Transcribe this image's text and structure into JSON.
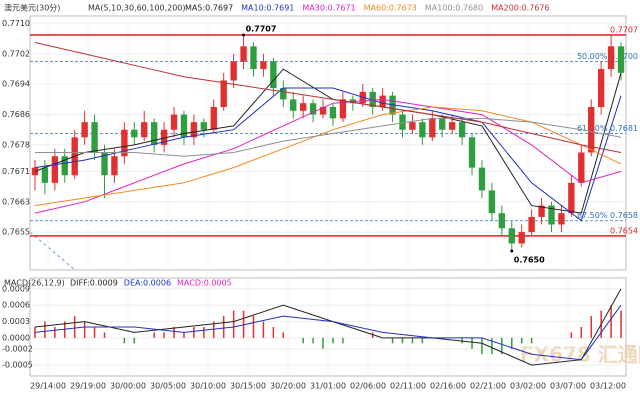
{
  "chart_data": {
    "type": "candlestick",
    "title": "澳元美元(30分)",
    "ma_title": "MA(5,10,30,60,100,200)",
    "candles": [
      [
        0.767,
        0.7674,
        0.7666,
        0.7672
      ],
      [
        0.7672,
        0.7674,
        0.7665,
        0.7668
      ],
      [
        0.7668,
        0.7677,
        0.7666,
        0.7675
      ],
      [
        0.7675,
        0.7677,
        0.7668,
        0.767
      ],
      [
        0.767,
        0.7682,
        0.7669,
        0.768
      ],
      [
        0.768,
        0.7687,
        0.7678,
        0.7684
      ],
      [
        0.7684,
        0.7686,
        0.7674,
        0.7676
      ],
      [
        0.7676,
        0.7678,
        0.7664,
        0.767
      ],
      [
        0.767,
        0.7677,
        0.7668,
        0.7675
      ],
      [
        0.7675,
        0.7684,
        0.7673,
        0.7682
      ],
      [
        0.7682,
        0.7684,
        0.7678,
        0.768
      ],
      [
        0.768,
        0.7687,
        0.7679,
        0.7684
      ],
      [
        0.7684,
        0.7685,
        0.7676,
        0.7678
      ],
      [
        0.7678,
        0.7684,
        0.7676,
        0.7682
      ],
      [
        0.7682,
        0.7688,
        0.768,
        0.7686
      ],
      [
        0.7686,
        0.7687,
        0.7678,
        0.768
      ],
      [
        0.768,
        0.7686,
        0.7678,
        0.7684
      ],
      [
        0.7684,
        0.7685,
        0.768,
        0.7682
      ],
      [
        0.7682,
        0.769,
        0.7681,
        0.7688
      ],
      [
        0.7688,
        0.7697,
        0.7687,
        0.7695
      ],
      [
        0.7695,
        0.7702,
        0.7693,
        0.77
      ],
      [
        0.77,
        0.7707,
        0.7698,
        0.7704
      ],
      [
        0.7704,
        0.7705,
        0.7696,
        0.7698
      ],
      [
        0.7698,
        0.7702,
        0.7696,
        0.77
      ],
      [
        0.77,
        0.7701,
        0.7691,
        0.7693
      ],
      [
        0.7693,
        0.7695,
        0.7688,
        0.769
      ],
      [
        0.769,
        0.7692,
        0.7685,
        0.7687
      ],
      [
        0.7687,
        0.7691,
        0.7685,
        0.7689
      ],
      [
        0.7689,
        0.769,
        0.7684,
        0.7686
      ],
      [
        0.7686,
        0.769,
        0.7685,
        0.7688
      ],
      [
        0.7688,
        0.7689,
        0.7683,
        0.7685
      ],
      [
        0.7685,
        0.7692,
        0.7684,
        0.769
      ],
      [
        0.769,
        0.7691,
        0.7687,
        0.7689
      ],
      [
        0.7689,
        0.7694,
        0.7688,
        0.7692
      ],
      [
        0.7692,
        0.7693,
        0.7686,
        0.7688
      ],
      [
        0.7688,
        0.7693,
        0.7687,
        0.7691
      ],
      [
        0.7691,
        0.7692,
        0.7684,
        0.7686
      ],
      [
        0.7686,
        0.7687,
        0.768,
        0.7682
      ],
      [
        0.7682,
        0.7686,
        0.7681,
        0.7684
      ],
      [
        0.7684,
        0.7685,
        0.7678,
        0.768
      ],
      [
        0.768,
        0.7687,
        0.7679,
        0.7685
      ],
      [
        0.7685,
        0.7686,
        0.768,
        0.7682
      ],
      [
        0.7682,
        0.7686,
        0.7681,
        0.7684
      ],
      [
        0.7684,
        0.7685,
        0.7678,
        0.768
      ],
      [
        0.768,
        0.7681,
        0.767,
        0.7672
      ],
      [
        0.7672,
        0.7674,
        0.7664,
        0.7666
      ],
      [
        0.7666,
        0.7668,
        0.7658,
        0.766
      ],
      [
        0.766,
        0.7662,
        0.7654,
        0.7656
      ],
      [
        0.7656,
        0.7658,
        0.765,
        0.7652
      ],
      [
        0.7652,
        0.7657,
        0.7651,
        0.7655
      ],
      [
        0.7655,
        0.7661,
        0.7654,
        0.7659
      ],
      [
        0.7659,
        0.7664,
        0.7657,
        0.7662
      ],
      [
        0.7662,
        0.7663,
        0.7655,
        0.7657
      ],
      [
        0.7657,
        0.7662,
        0.7655,
        0.766
      ],
      [
        0.766,
        0.767,
        0.7659,
        0.7668
      ],
      [
        0.7668,
        0.7678,
        0.7667,
        0.7676
      ],
      [
        0.7676,
        0.769,
        0.7675,
        0.7688
      ],
      [
        0.7688,
        0.77,
        0.7686,
        0.7698
      ],
      [
        0.7698,
        0.7707,
        0.7696,
        0.7704
      ],
      [
        0.7704,
        0.7705,
        0.7695,
        0.7697
      ]
    ],
    "up_color": "#e03030",
    "down_color": "#2e9e3e",
    "x": [
      0,
      5,
      10,
      15,
      20,
      25,
      30,
      35,
      40,
      45,
      50,
      55,
      59
    ],
    "series": [
      {
        "name": "MA5:0.7697",
        "color": "#222222",
        "values": [
          0.7671,
          0.7676,
          0.7678,
          0.7681,
          0.7683,
          0.7698,
          0.769,
          0.7688,
          0.7686,
          0.7683,
          0.7662,
          0.766,
          0.7697
        ]
      },
      {
        "name": "MA10:0.7691",
        "color": "#2030c0",
        "values": [
          0.7672,
          0.7674,
          0.7677,
          0.768,
          0.7682,
          0.7693,
          0.7693,
          0.7689,
          0.7687,
          0.7684,
          0.7668,
          0.7658,
          0.7691
        ]
      },
      {
        "name": "MA30:0.7671",
        "color": "#e020c0",
        "values": [
          0.766,
          0.7663,
          0.7668,
          0.7673,
          0.7677,
          0.7683,
          0.7689,
          0.769,
          0.7688,
          0.7686,
          0.7678,
          0.7668,
          0.7671
        ]
      },
      {
        "name": "MA60:0.7673",
        "color": "#f08a20",
        "values": [
          0.7662,
          0.7664,
          0.7666,
          0.7668,
          0.7672,
          0.7677,
          0.7682,
          0.7686,
          0.7688,
          0.7687,
          0.7684,
          0.7678,
          0.7673
        ]
      },
      {
        "name": "MA100:0.7680",
        "color": "#909090",
        "values": [
          0.7676,
          0.7676,
          0.7676,
          0.7675,
          0.7676,
          0.7679,
          0.7681,
          0.7683,
          0.7685,
          0.7685,
          0.7684,
          0.7682,
          0.768
        ]
      },
      {
        "name": "MA200:0.7676",
        "color": "#c03030",
        "values": [
          0.7705,
          0.7702,
          0.7699,
          0.7696,
          0.7694,
          0.7692,
          0.769,
          0.7688,
          0.7686,
          0.7684,
          0.7681,
          0.7678,
          0.7676
        ]
      }
    ],
    "ylim": [
      0.7645,
      0.7712
    ],
    "yticks": [
      {
        "value": 0.771,
        "label": "0.7710"
      },
      0.7702,
      0.7694,
      0.7686,
      0.7678,
      0.7671,
      0.7663,
      0.7655
    ],
    "levels": [
      {
        "value": 0.7707,
        "label": "0.7707",
        "color": "#e02020",
        "dashed": false
      },
      {
        "value": 0.77,
        "label": "50.00% 0.7700",
        "color": "#3070c0",
        "dashed": true
      },
      {
        "value": 0.7681,
        "label": "61.80% 0.7681",
        "color": "#3070c0",
        "dashed": true
      },
      {
        "value": 0.7658,
        "label": "87.50% 0.7658",
        "color": "#3070c0",
        "dashed": true
      },
      {
        "value": 0.7654,
        "label": "0.7654",
        "color": "#e02020",
        "dashed": false
      }
    ],
    "annotations": [
      {
        "text": "0.7707",
        "value": 0.7707,
        "index": 21
      },
      {
        "text": "0.7650",
        "value": 0.765,
        "index": 48
      }
    ],
    "categories": [
      "29/14:00",
      "29/19:00",
      "30/00:00",
      "30/05:00",
      "30/10:00",
      "30/15:00",
      "30/20:00",
      "31/01:00",
      "02/06:00",
      "02/11:00",
      "02/16:00",
      "02/21:00",
      "03/02:00",
      "03/07:00",
      "03/12:00"
    ],
    "macd": {
      "title": "MACD(26,12,9)",
      "hist": {
        "name": "MACD:0.0005",
        "values": [
          0.0002,
          0.0003,
          0.0002,
          0.0003,
          0.0004,
          0.0003,
          0.0002,
          0.0001,
          0,
          -0.0001,
          -0.0001,
          0,
          0.0001,
          0.0001,
          0.0002,
          0.0001,
          0.0002,
          0.0002,
          0.0003,
          0.0004,
          0.0005,
          0.0005,
          0.0004,
          0.0003,
          0.0002,
          0.0001,
          0,
          -0.0001,
          -0.0001,
          -0.0002,
          -0.0001,
          -0.0001,
          0,
          0,
          0.0001,
          0,
          -0.0001,
          -0.0001,
          -0.0001,
          -0.0001,
          0,
          0,
          0,
          -0.0001,
          -0.0002,
          -0.0003,
          -0.0003,
          -0.0003,
          -0.0002,
          -0.0001,
          -0.0001,
          0,
          0,
          0,
          0.0001,
          0.0002,
          0.0004,
          0.0005,
          0.0006,
          0.0005
        ]
      },
      "series": [
        {
          "name": "DIFF:0.0009",
          "color": "#222222",
          "values": [
            0.0002,
            0.0003,
            0.0001,
            0.0002,
            0.0003,
            0.0006,
            0.0003,
            0,
            0,
            -0.0001,
            -0.0005,
            -0.0004,
            0.0009
          ]
        },
        {
          "name": "DEA:0.0006",
          "color": "#2030c0",
          "values": [
            0.0001,
            0.0002,
            0.0002,
            0.0001,
            0.0002,
            0.0004,
            0.0003,
            0.0001,
            0,
            0,
            -0.0003,
            -0.0004,
            0.0006
          ]
        }
      ],
      "ylim": [
        -0.0007,
        0.0011
      ],
      "yticks": [
        0.0009,
        0.0006,
        0.0003,
        {
          "value": 0,
          "label": "0.0000"
        },
        -0.0002,
        -0.0005
      ]
    },
    "watermark": "FX678 汇通网"
  }
}
